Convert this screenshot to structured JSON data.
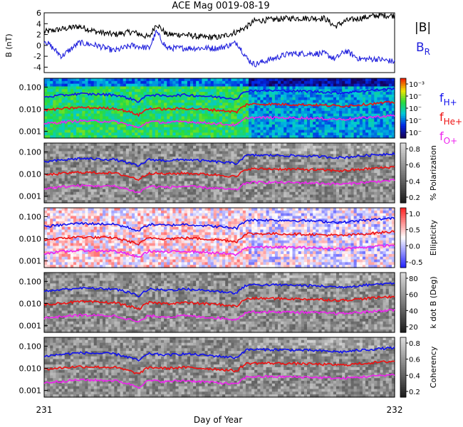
{
  "title": "ACE Mag 0019-08-19",
  "xlabel": "Day of Year",
  "x_ticks": [
    "231",
    "232"
  ],
  "colors": {
    "b_total": "#000000",
    "b_r": "#2222dd",
    "f_h": "#1010ee",
    "f_he": "#ee1010",
    "f_o": "#ee22ee"
  },
  "top_panel": {
    "ylabel": "B (nT)",
    "ylim": [
      -5,
      6
    ],
    "yticks": [
      "6",
      "4",
      "2",
      "0",
      "-2",
      "-4"
    ],
    "legend": {
      "b_total": "|B|",
      "b_r_main": "B",
      "b_r_sub": "R"
    }
  },
  "legend_f": [
    {
      "main": "f",
      "sub": "H+",
      "color": "#1010ee"
    },
    {
      "main": "f",
      "sub": "He+",
      "color": "#ee1010"
    },
    {
      "main": "f",
      "sub": "O+",
      "color": "#ee22ee"
    }
  ],
  "freq_yticks": [
    "0.100",
    "0.010",
    "0.001"
  ],
  "spectrogram_panels": [
    {
      "id": "power",
      "colormap": "rainbow",
      "cbar_label": "",
      "cbar_ticks": [
        "10⁻³",
        "10⁻",
        "10⁻",
        "10⁻",
        "10⁻"
      ]
    },
    {
      "id": "polarization",
      "colormap": "gray",
      "cbar_label": "% Polarization",
      "cbar_ticks": [
        "0.8",
        "0.6",
        "0.4",
        "0.2"
      ]
    },
    {
      "id": "ellipticity",
      "colormap": "bwr",
      "cbar_label": "Ellipticity",
      "cbar_ticks": [
        "1.0",
        "0.5",
        "0.0",
        "-0.5"
      ]
    },
    {
      "id": "k_dot_b",
      "colormap": "gray",
      "cbar_label": "k dot B (Deg)",
      "cbar_ticks": [
        "80",
        "60",
        "40",
        "20"
      ]
    },
    {
      "id": "coherency",
      "colormap": "gray",
      "cbar_label": "Coherency",
      "cbar_ticks": [
        "0.8",
        "0.6",
        "0.4",
        "0.2"
      ]
    }
  ],
  "chart_data": {
    "type": "line",
    "title": "ACE Mag 0019-08-19",
    "xlabel": "Day of Year",
    "xlim": [
      231,
      232
    ],
    "series": [
      {
        "name": "|B|",
        "x": [
          231.0,
          231.05,
          231.1,
          231.15,
          231.2,
          231.25,
          231.3,
          231.32,
          231.35,
          231.4,
          231.45,
          231.5,
          231.55,
          231.58,
          231.6,
          231.7,
          231.8,
          231.83,
          231.86,
          231.9,
          231.95,
          232.0
        ],
        "values": [
          2.5,
          3.0,
          3.5,
          2.5,
          2.0,
          2.5,
          1.5,
          4.0,
          2.0,
          2.0,
          1.5,
          1.5,
          2.5,
          3.5,
          4.5,
          5.0,
          5.0,
          3.5,
          4.5,
          5.0,
          5.5,
          5.5
        ]
      },
      {
        "name": "B_R",
        "x": [
          231.0,
          231.05,
          231.1,
          231.15,
          231.2,
          231.25,
          231.3,
          231.32,
          231.35,
          231.4,
          231.45,
          231.5,
          231.55,
          231.58,
          231.6,
          231.7,
          231.8,
          231.83,
          231.86,
          231.9,
          231.95,
          232.0
        ],
        "values": [
          1.0,
          -2.0,
          0.5,
          0.0,
          -1.0,
          0.0,
          -0.5,
          2.5,
          -0.5,
          -0.5,
          -0.5,
          -0.5,
          0.5,
          -2.5,
          -3.5,
          -1.5,
          -1.5,
          -2.5,
          -1.0,
          -2.5,
          -2.5,
          -3.0
        ]
      },
      {
        "name": "f_H+",
        "x": [
          231.0,
          231.1,
          231.2,
          231.27,
          231.3,
          231.35,
          231.4,
          231.5,
          231.55,
          231.58,
          231.65,
          231.75,
          231.85,
          231.9,
          232.0
        ],
        "values": [
          0.035,
          0.05,
          0.045,
          0.022,
          0.045,
          0.04,
          0.045,
          0.035,
          0.03,
          0.07,
          0.07,
          0.065,
          0.055,
          0.065,
          0.085
        ]
      },
      {
        "name": "f_He+",
        "x": [
          231.0,
          231.1,
          231.2,
          231.27,
          231.3,
          231.35,
          231.4,
          231.5,
          231.55,
          231.58,
          231.65,
          231.75,
          231.85,
          231.9,
          232.0
        ],
        "values": [
          0.009,
          0.012,
          0.011,
          0.0055,
          0.011,
          0.01,
          0.011,
          0.009,
          0.0075,
          0.017,
          0.017,
          0.016,
          0.014,
          0.016,
          0.021
        ]
      },
      {
        "name": "f_O+",
        "x": [
          231.0,
          231.1,
          231.2,
          231.27,
          231.3,
          231.35,
          231.4,
          231.5,
          231.55,
          231.58,
          231.65,
          231.75,
          231.85,
          231.9,
          232.0
        ],
        "values": [
          0.0022,
          0.003,
          0.0028,
          0.0014,
          0.0028,
          0.0025,
          0.0028,
          0.0022,
          0.0019,
          0.0042,
          0.0042,
          0.004,
          0.0035,
          0.004,
          0.0052
        ]
      }
    ],
    "freq_ylim": [
      0.0005,
      0.25
    ],
    "freq_yscale": "log",
    "panels": 6
  }
}
